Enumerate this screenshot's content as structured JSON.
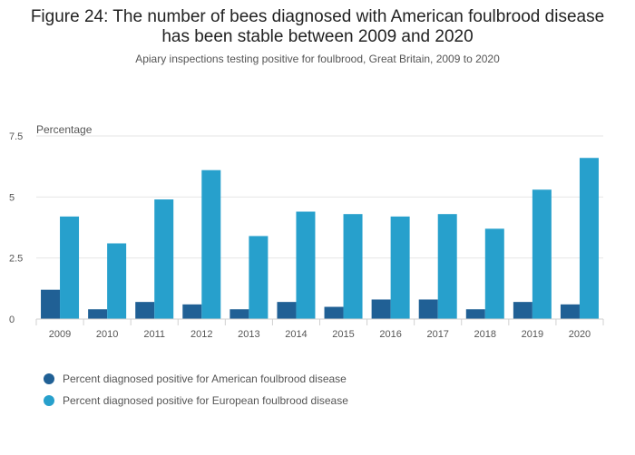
{
  "chart_data": {
    "type": "bar",
    "title_lines": [
      "Figure 24: The number of bees diagnosed with American foulbrood disease",
      "has been stable between 2009 and 2020"
    ],
    "subtitle": "Apiary inspections testing positive for foulbrood, Great Britain, 2009 to 2020",
    "ylabel": "Percentage",
    "ylim": [
      0,
      7.5
    ],
    "yticks": [
      0,
      2.5,
      5,
      7.5
    ],
    "ytick_labels": [
      "0",
      "2.5",
      "5",
      "7.5"
    ],
    "categories": [
      "2009",
      "2010",
      "2011",
      "2012",
      "2013",
      "2014",
      "2015",
      "2016",
      "2017",
      "2018",
      "2019",
      "2020"
    ],
    "series": [
      {
        "name": "Percent diagnosed positive for American foulbrood disease",
        "color": "#206095",
        "values": [
          1.2,
          0.4,
          0.7,
          0.6,
          0.4,
          0.7,
          0.5,
          0.8,
          0.8,
          0.4,
          0.7,
          0.6
        ]
      },
      {
        "name": "Percent diagnosed positive for European foulbrood disease",
        "color": "#27a0cc",
        "values": [
          4.2,
          3.1,
          4.9,
          6.1,
          3.4,
          4.4,
          4.3,
          4.2,
          4.3,
          3.7,
          5.3,
          6.6
        ]
      }
    ],
    "grid": true,
    "legend": "bottom-left"
  }
}
